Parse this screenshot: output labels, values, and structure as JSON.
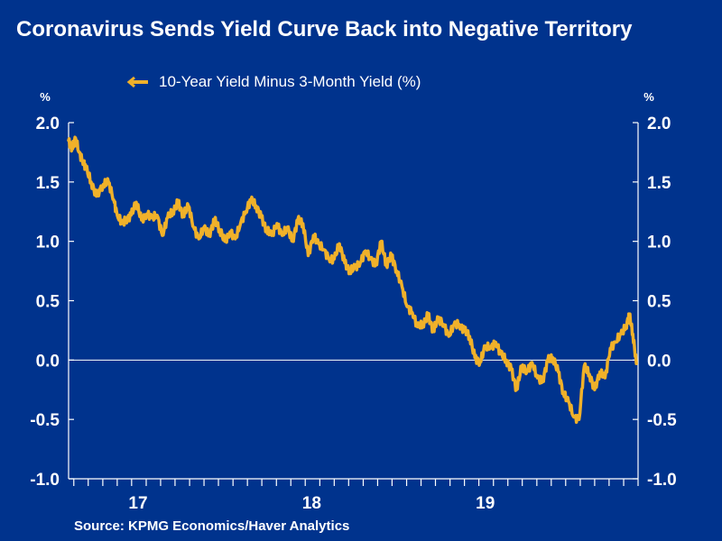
{
  "title": "Coronavirus Sends Yield Curve Back into Negative Territory",
  "source": "Source:  KPMG Economics/Haver Analytics",
  "colors": {
    "background": "#00338d",
    "series": "#f0b12a",
    "text": "#ffffff"
  },
  "chart_data": {
    "type": "line",
    "title": "Coronavirus Sends Yield Curve Back into Negative Territory",
    "ylabel_left": "%",
    "ylabel_right": "%",
    "xlim": [
      2016.72,
      2020.0
    ],
    "ylim": [
      -1.0,
      2.0
    ],
    "yticks": [
      2.0,
      1.5,
      1.0,
      0.5,
      0.0,
      -0.5,
      -1.0
    ],
    "ytick_labels": [
      "2.0",
      "1.5",
      "1.0",
      "0.5",
      "0.0",
      "-0.5",
      "-1.0"
    ],
    "xticks": [
      2016.75,
      2016.833,
      2016.917,
      2017.0,
      2017.083,
      2017.167,
      2017.25,
      2017.333,
      2017.417,
      2017.5,
      2017.583,
      2017.667,
      2017.75,
      2017.833,
      2017.917,
      2018.0,
      2018.083,
      2018.167,
      2018.25,
      2018.333,
      2018.417,
      2018.5,
      2018.583,
      2018.667,
      2018.75,
      2018.833,
      2018.917,
      2019.0,
      2019.083,
      2019.167,
      2019.25,
      2019.333,
      2019.417,
      2019.5,
      2019.583,
      2019.667,
      2019.75,
      2019.833,
      2019.917,
      2020.0
    ],
    "year_labels": [
      {
        "label": "17",
        "x": 2017.12
      },
      {
        "label": "18",
        "x": 2018.12
      },
      {
        "label": "19",
        "x": 2019.12
      }
    ],
    "zero_line": true,
    "legend": "top-left",
    "series": [
      {
        "name": "10-Year Yield Minus 3-Month Yield (%)",
        "x": [
          2016.72,
          2016.74,
          2016.76,
          2016.78,
          2016.8,
          2016.82,
          2016.85,
          2016.88,
          2016.92,
          2016.95,
          2016.98,
          2017.0,
          2017.03,
          2017.05,
          2017.08,
          2017.11,
          2017.14,
          2017.17,
          2017.2,
          2017.23,
          2017.26,
          2017.29,
          2017.32,
          2017.35,
          2017.38,
          2017.41,
          2017.44,
          2017.47,
          2017.5,
          2017.53,
          2017.56,
          2017.59,
          2017.62,
          2017.65,
          2017.68,
          2017.71,
          2017.74,
          2017.77,
          2017.8,
          2017.83,
          2017.86,
          2017.89,
          2017.92,
          2017.95,
          2017.98,
          2018.01,
          2018.04,
          2018.07,
          2018.1,
          2018.13,
          2018.16,
          2018.19,
          2018.22,
          2018.25,
          2018.28,
          2018.31,
          2018.34,
          2018.37,
          2018.4,
          2018.43,
          2018.46,
          2018.49,
          2018.52,
          2018.55,
          2018.58,
          2018.61,
          2018.64,
          2018.67,
          2018.7,
          2018.73,
          2018.76,
          2018.79,
          2018.82,
          2018.85,
          2018.88,
          2018.91,
          2018.94,
          2018.97,
          2019.0,
          2019.03,
          2019.06,
          2019.09,
          2019.12,
          2019.15,
          2019.18,
          2019.21,
          2019.24,
          2019.27,
          2019.3,
          2019.33,
          2019.36,
          2019.39,
          2019.42,
          2019.45,
          2019.48,
          2019.51,
          2019.54,
          2019.57,
          2019.6,
          2019.63,
          2019.66,
          2019.69,
          2019.72,
          2019.75,
          2019.78,
          2019.81,
          2019.84,
          2019.87,
          2019.9,
          2019.93,
          2019.95,
          2019.97,
          2019.99
        ],
        "y": [
          1.85,
          1.78,
          1.87,
          1.75,
          1.68,
          1.62,
          1.5,
          1.38,
          1.48,
          1.5,
          1.35,
          1.22,
          1.15,
          1.18,
          1.22,
          1.33,
          1.18,
          1.23,
          1.2,
          1.22,
          1.05,
          1.2,
          1.25,
          1.33,
          1.22,
          1.3,
          1.12,
          1.02,
          1.12,
          1.05,
          1.18,
          1.1,
          1.0,
          1.08,
          1.02,
          1.15,
          1.25,
          1.35,
          1.3,
          1.2,
          1.1,
          1.05,
          1.15,
          1.05,
          1.12,
          1.0,
          1.18,
          1.15,
          0.88,
          1.05,
          0.98,
          0.93,
          0.85,
          0.85,
          0.98,
          0.82,
          0.75,
          0.78,
          0.82,
          0.92,
          0.85,
          0.8,
          1.0,
          0.8,
          0.88,
          0.75,
          0.62,
          0.45,
          0.4,
          0.28,
          0.3,
          0.38,
          0.25,
          0.35,
          0.3,
          0.2,
          0.3,
          0.3,
          0.25,
          0.2,
          0.02,
          -0.02,
          0.12,
          0.1,
          0.15,
          0.05,
          0.0,
          -0.08,
          -0.25,
          -0.05,
          -0.1,
          -0.02,
          -0.15,
          -0.18,
          0.0,
          0.02,
          -0.1,
          -0.28,
          -0.35,
          -0.48,
          -0.5,
          -0.05,
          -0.12,
          -0.25,
          -0.1,
          -0.15,
          0.1,
          0.15,
          0.22,
          0.28,
          0.38,
          0.22,
          -0.03
        ]
      }
    ]
  }
}
